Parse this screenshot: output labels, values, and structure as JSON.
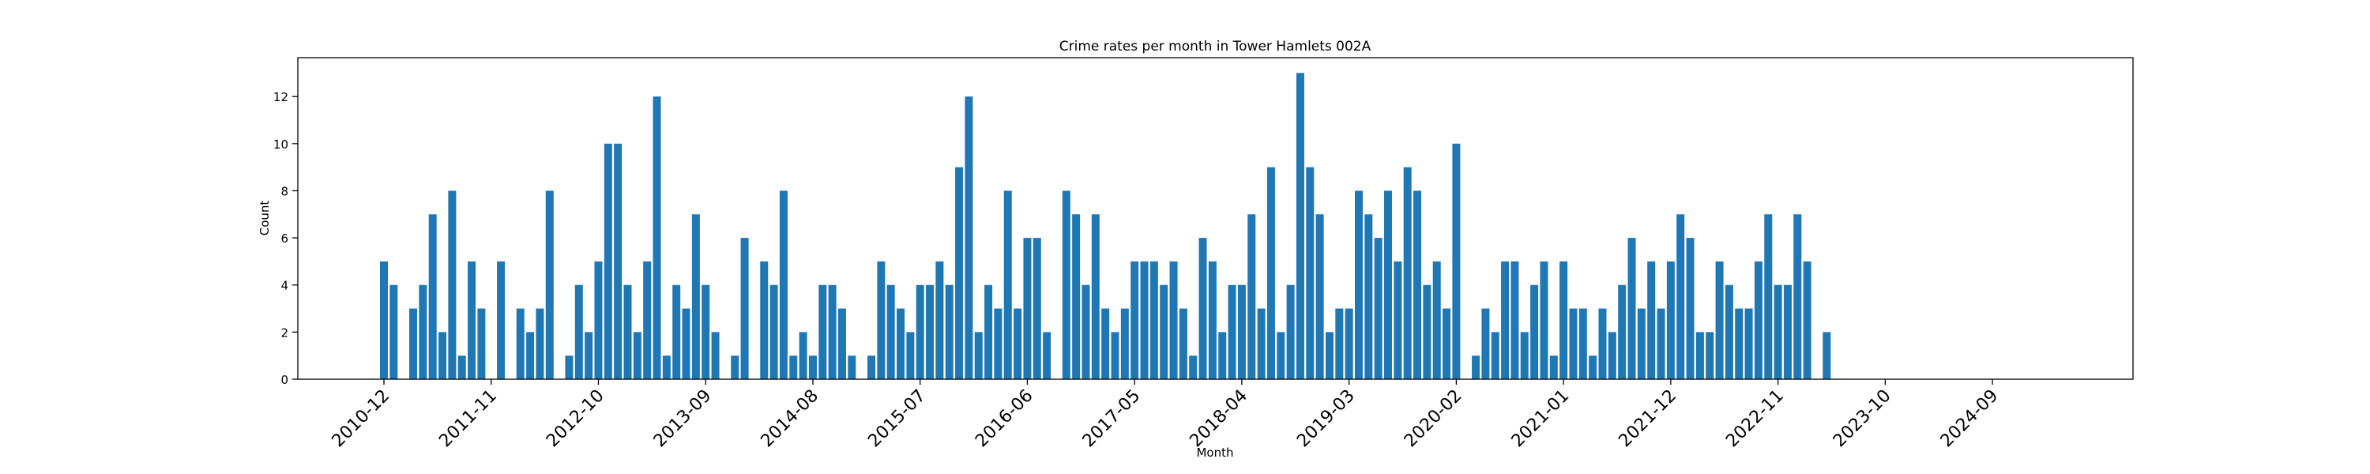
{
  "chart_data": {
    "type": "bar",
    "title": "Crime rates per month in Tower Hamlets 002A",
    "xlabel": "Month",
    "ylabel": "Count",
    "color": "#1f77b4",
    "categories": [
      "2010-12",
      null,
      null,
      null,
      null,
      null,
      null,
      null,
      null,
      null,
      null,
      "2011-11",
      null,
      null,
      null,
      null,
      null,
      null,
      null,
      null,
      null,
      null,
      "2012-10",
      null,
      null,
      null,
      null,
      null,
      null,
      null,
      null,
      null,
      null,
      "2013-09",
      null,
      null,
      null,
      null,
      null,
      null,
      null,
      null,
      null,
      null,
      "2014-08",
      null,
      null,
      null,
      null,
      null,
      null,
      null,
      null,
      null,
      null,
      "2015-07",
      null,
      null,
      null,
      null,
      null,
      null,
      null,
      null,
      null,
      null,
      "2016-06",
      null,
      null,
      null,
      null,
      null,
      null,
      null,
      null,
      null,
      null,
      "2017-05",
      null,
      null,
      null,
      null,
      null,
      null,
      null,
      null,
      null,
      null,
      "2018-04",
      null,
      null,
      null,
      null,
      null,
      null,
      null,
      null,
      null,
      null,
      "2019-03",
      null,
      null,
      null,
      null,
      null,
      null,
      null,
      null,
      null,
      null,
      "2020-02",
      null,
      null,
      null,
      null,
      null,
      null,
      null,
      null,
      null,
      null,
      "2021-01",
      null,
      null,
      null,
      null,
      null,
      null,
      null,
      null,
      null,
      null,
      "2021-12",
      null,
      null,
      null,
      null,
      null,
      null,
      null,
      null,
      null,
      null,
      "2022-11",
      null,
      null,
      null,
      null,
      null,
      null,
      null,
      null,
      null,
      null,
      "2023-10",
      null,
      null,
      null,
      null,
      null,
      null,
      null,
      null,
      null,
      null,
      "2024-09"
    ],
    "values": [
      5,
      4,
      0,
      3,
      4,
      7,
      2,
      8,
      1,
      5,
      3,
      0,
      5,
      0,
      3,
      2,
      3,
      8,
      0,
      1,
      4,
      2,
      5,
      10,
      10,
      4,
      2,
      5,
      12,
      1,
      4,
      3,
      7,
      4,
      2,
      0,
      1,
      6,
      0,
      5,
      4,
      8,
      1,
      2,
      1,
      4,
      4,
      3,
      1,
      0,
      1,
      5,
      4,
      3,
      2,
      4,
      4,
      5,
      4,
      9,
      12,
      2,
      4,
      3,
      8,
      3,
      6,
      6,
      2,
      0,
      8,
      7,
      4,
      7,
      3,
      2,
      3,
      5,
      5,
      5,
      4,
      5,
      3,
      1,
      6,
      5,
      2,
      4,
      4,
      7,
      3,
      9,
      2,
      4,
      13,
      9,
      7,
      2,
      3,
      3,
      8,
      7,
      6,
      8,
      5,
      9,
      8,
      4,
      5,
      3,
      10,
      0,
      1,
      3,
      2,
      5,
      5,
      2,
      4,
      5,
      1,
      5,
      3,
      3,
      1,
      3,
      2,
      4,
      6,
      3,
      5,
      3,
      5,
      7,
      6,
      2,
      2,
      5,
      4,
      3,
      3,
      5,
      7,
      4,
      4,
      7,
      5,
      0,
      2,
      null,
      null,
      null,
      null,
      null,
      null,
      null,
      null,
      null,
      null,
      null,
      null,
      null,
      null,
      null,
      null,
      null
    ],
    "ylim": [
      0,
      13.65
    ],
    "yticks": [
      0,
      2,
      4,
      6,
      8,
      10,
      12
    ],
    "grid": false
  }
}
